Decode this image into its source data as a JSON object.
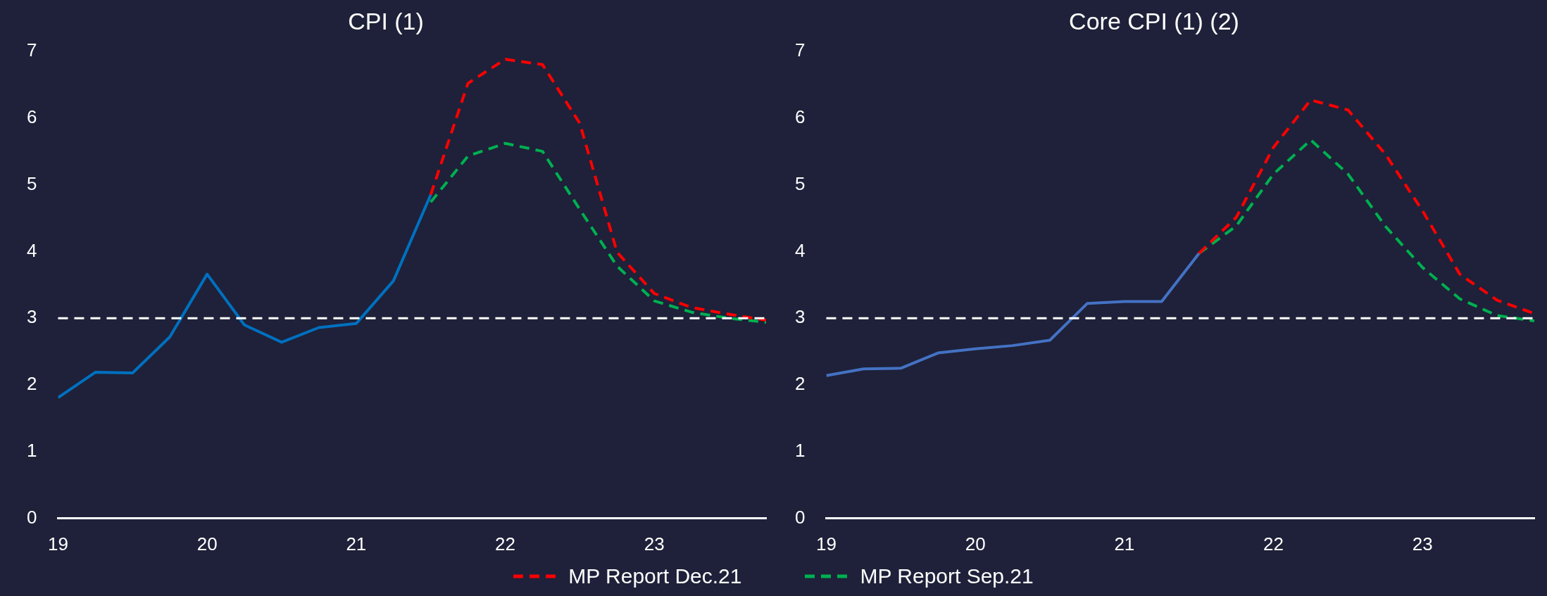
{
  "chart_data": [
    {
      "type": "line",
      "title": "CPI (1)",
      "xlim": [
        19,
        23.75
      ],
      "xticks": [
        19,
        20,
        21,
        22,
        23
      ],
      "ylim": [
        0,
        7
      ],
      "yticks": [
        0,
        1,
        2,
        3,
        4,
        5,
        6,
        7
      ],
      "grid": false,
      "marker": "none",
      "legend": "bottom",
      "ref_lines": [
        {
          "axis": "y",
          "value": 3,
          "color": "#ffffff",
          "line_style": "dashed"
        }
      ],
      "series": [
        {
          "color": "#0070c0",
          "line_style": "solid",
          "x": [
            19,
            19.25,
            19.5,
            19.75,
            20,
            20.25,
            20.5,
            20.75,
            21,
            21.25,
            21.5
          ],
          "values": [
            1.81,
            2.19,
            2.18,
            2.72,
            3.66,
            2.9,
            2.64,
            2.86,
            2.92,
            3.56,
            4.85
          ]
        },
        {
          "name": "MP Report Dec.21",
          "color": "#ff0000",
          "line_style": "dashed",
          "x": [
            21.5,
            21.75,
            22,
            22.25,
            22.5,
            22.75,
            23,
            23.25,
            23.5,
            23.75
          ],
          "values": [
            4.85,
            6.52,
            6.88,
            6.8,
            5.92,
            3.99,
            3.37,
            3.16,
            3.06,
            2.97
          ]
        },
        {
          "name": "MP Report Sep.21",
          "color": "#00b050",
          "line_style": "dashed",
          "x": [
            21.5,
            21.75,
            22,
            22.25,
            22.5,
            22.75,
            23,
            23.25,
            23.5,
            23.75
          ],
          "values": [
            4.74,
            5.43,
            5.62,
            5.5,
            4.63,
            3.78,
            3.26,
            3.09,
            3.0,
            2.94
          ]
        }
      ]
    },
    {
      "type": "line",
      "title": "Core CPI (1) (2)",
      "xlim": [
        19,
        23.75
      ],
      "xticks": [
        19,
        20,
        21,
        22,
        23
      ],
      "ylim": [
        0,
        7
      ],
      "yticks": [
        0,
        1,
        2,
        3,
        4,
        5,
        6,
        7
      ],
      "grid": false,
      "marker": "none",
      "ref_lines": [
        {
          "axis": "y",
          "value": 3,
          "color": "#ffffff",
          "line_style": "dashed"
        }
      ],
      "series": [
        {
          "color": "#4472c4",
          "line_style": "solid",
          "x": [
            19,
            19.25,
            19.5,
            19.75,
            20,
            20.25,
            20.5,
            20.75,
            21,
            21.25,
            21.5
          ],
          "values": [
            2.14,
            2.24,
            2.25,
            2.48,
            2.54,
            2.59,
            2.67,
            3.22,
            3.25,
            3.25,
            3.97
          ]
        },
        {
          "color": "#ff0000",
          "line_style": "dashed",
          "x": [
            21.5,
            21.75,
            22,
            22.25,
            22.5,
            22.75,
            23,
            23.25,
            23.5,
            23.75
          ],
          "values": [
            3.97,
            4.51,
            5.56,
            6.27,
            6.12,
            5.46,
            4.61,
            3.66,
            3.27,
            3.07
          ]
        },
        {
          "color": "#00b050",
          "line_style": "dashed",
          "x": [
            21.5,
            21.75,
            22,
            22.25,
            22.5,
            22.75,
            23,
            23.25,
            23.5,
            23.75
          ],
          "values": [
            3.97,
            4.38,
            5.16,
            5.67,
            5.16,
            4.38,
            3.76,
            3.29,
            3.04,
            2.96
          ]
        }
      ]
    }
  ]
}
